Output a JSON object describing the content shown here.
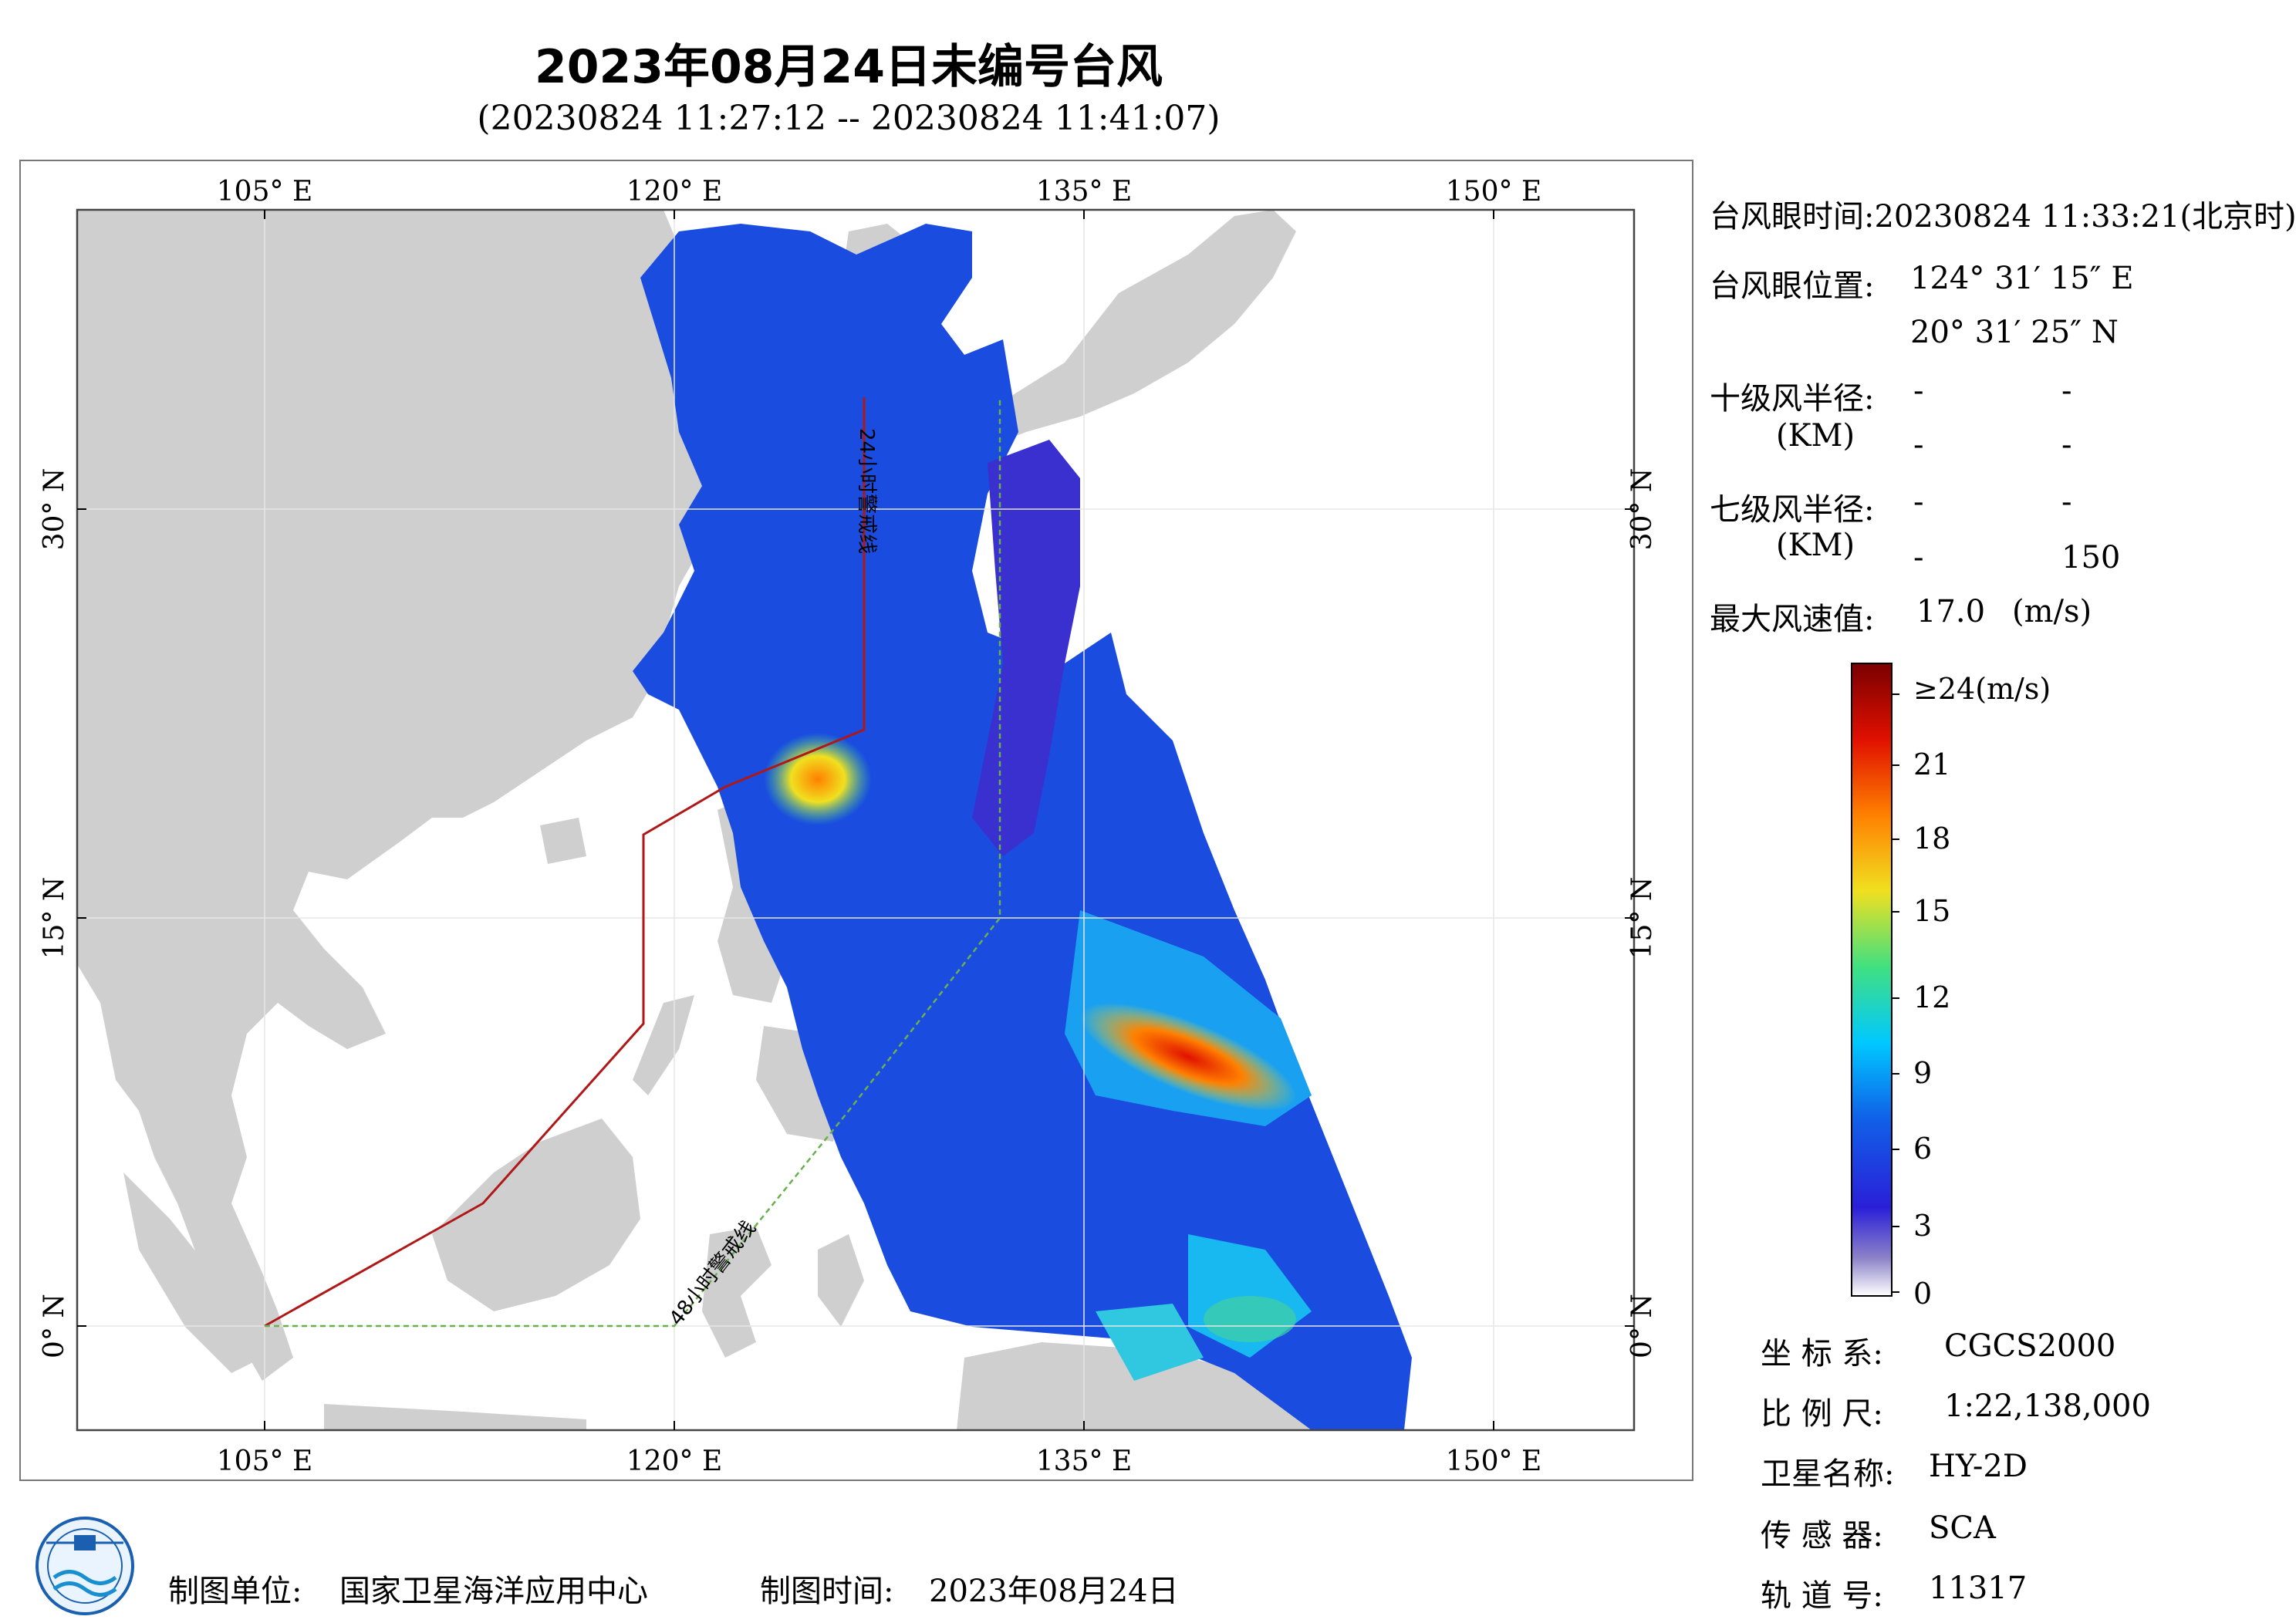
{
  "title": "2023年08月24日未编号台风",
  "subtitle": "(20230824 11:27:12 -- 20230824 11:41:07)",
  "map": {
    "lon_ticks": [
      "105° E",
      "120° E",
      "135° E",
      "150° E"
    ],
    "lat_ticks": [
      "30° N",
      "15° N",
      "0° N"
    ],
    "line_24h": "24小时警戒线",
    "line_48h": "48小时警戒线",
    "colors": {
      "land": "#cfcfcf",
      "sea": "#ffffff",
      "warning_24h": "#b01818",
      "warning_48h": "#6ab04c"
    }
  },
  "info": {
    "eye_time_label": "台风眼时间:",
    "eye_time_value": "20230824 11:33:21(北京时)",
    "eye_pos_label": "台风眼位置:",
    "eye_lon": "124° 31′ 15″ E",
    "eye_lat": "20° 31′ 25″ N",
    "r10_label": "十级风半径:",
    "r10_unit": "(KM)",
    "r10_values": [
      "-",
      "-",
      "-",
      "-"
    ],
    "r7_label": "七级风半径:",
    "r7_unit": "(KM)",
    "r7_values": [
      "-",
      "-",
      "-",
      "150"
    ],
    "max_wind_label": "最大风速值:",
    "max_wind_value": "17.0",
    "max_wind_unit": "(m/s)"
  },
  "colorbar": {
    "labels": [
      "≥24(m/s)",
      "21",
      "18",
      "15",
      "12",
      "9",
      "6",
      "3",
      "0"
    ],
    "stops": [
      "#ffffff",
      "#8c82c8",
      "#2a1fd8",
      "#1060e8",
      "#00c8ff",
      "#40e080",
      "#f0e020",
      "#ff8000",
      "#e01000",
      "#7a0000"
    ]
  },
  "meta": {
    "crs_label": "坐 标 系:",
    "crs_value": "CGCS2000",
    "scale_label": "比 例 尺:",
    "scale_value": "1:22,138,000",
    "sat_label": "卫星名称:",
    "sat_value": "HY-2D",
    "sensor_label": "传 感 器:",
    "sensor_value": "SCA",
    "orbit_label": "轨 道 号:",
    "orbit_value": "11317"
  },
  "footer": {
    "unit_label": "制图单位:",
    "unit_value": "国家卫星海洋应用中心",
    "time_label": "制图时间:",
    "time_value": "2023年08月24日"
  }
}
